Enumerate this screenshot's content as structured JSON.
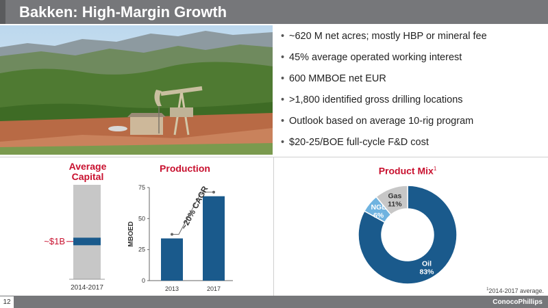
{
  "slide": {
    "title": "Bakken: High-Margin Growth",
    "page_number": "12",
    "logo": "ConocoPhillips",
    "footnote_sup": "1",
    "footnote": "2014-2017 average."
  },
  "bullets": [
    "~620 M net acres; mostly HBP or mineral fee",
    "45% average operated working interest",
    "600 MMBOE net EUR",
    ">1,800 identified gross drilling locations",
    "Outlook based on average 10-rig program",
    "$20-25/BOE full-cycle F&D cost"
  ],
  "colors": {
    "title_bar": "#76777a",
    "headline_red": "#c8102e",
    "navy": "#1a5a8c",
    "light_blue": "#6fb3e0",
    "gray": "#c7c7c7"
  },
  "chart_data": [
    {
      "type": "bar",
      "title": "Average Capital",
      "categories": [
        "2014-2017"
      ],
      "values": [
        1
      ],
      "range": [
        0.9,
        1.1
      ],
      "ylim": [
        0,
        2.5
      ],
      "annotation": "~$1B",
      "unit": "$B"
    },
    {
      "type": "bar",
      "title": "Production",
      "ylabel": "MBOED",
      "categories": [
        "2013",
        "2017"
      ],
      "values": [
        34,
        68
      ],
      "ylim": [
        0,
        75
      ],
      "yticks": [
        0,
        25,
        50,
        75
      ],
      "annotation": "~20% CAGR"
    },
    {
      "type": "pie",
      "title": "Product Mix",
      "title_sup": "1",
      "donut": true,
      "slices": [
        {
          "name": "Oil",
          "value": 83,
          "label": "83%"
        },
        {
          "name": "NGL",
          "value": 6,
          "label": "6%"
        },
        {
          "name": "Gas",
          "value": 11,
          "label": "11%"
        }
      ]
    }
  ]
}
